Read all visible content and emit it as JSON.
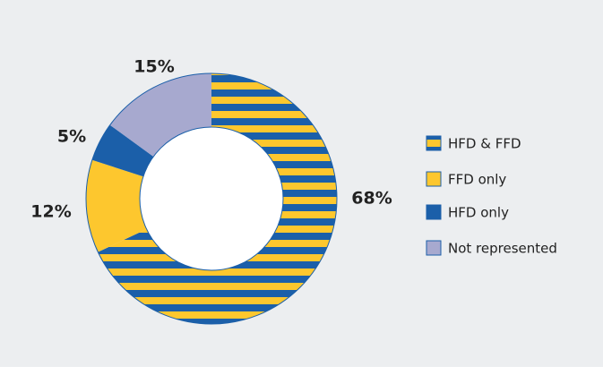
{
  "chart_data": {
    "type": "donut",
    "categories": [
      "HFD & FFD",
      "FFD only",
      "HFD only",
      "Not represented"
    ],
    "values": [
      68,
      12,
      5,
      15
    ],
    "value_labels": [
      "68%",
      "12%",
      "5%",
      "15%"
    ],
    "colors": [
      [
        "#1b5fa9",
        "#fdc72e"
      ],
      "#fdc72e",
      "#1b5fa9",
      "#a7a9cf"
    ],
    "legend": "right"
  }
}
